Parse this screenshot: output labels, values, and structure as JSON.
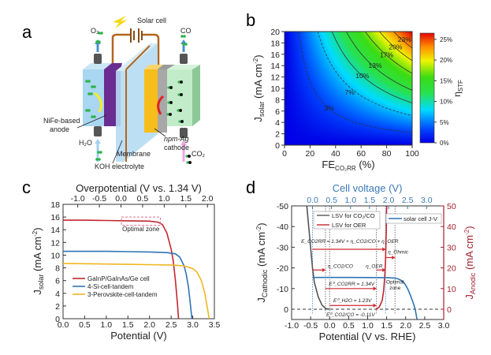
{
  "panel_labels": [
    "a",
    "b",
    "c",
    "d"
  ],
  "diagram": {
    "solar_cell": "Solar cell",
    "o2": "O₂",
    "co": "CO",
    "anode_1": "NiFe-based",
    "anode_2": "anode",
    "h2o": "H₂O",
    "membrane": "Membrane",
    "electrolyte": "KOH electrolyte",
    "cathode_1": "npm-Ag",
    "cathode_2": "cathode",
    "co2": "CO₂",
    "colors": {
      "anolyte": "#a9d6f0",
      "anode": "#6a2c91",
      "membrane": "#b5dcf3",
      "cathode": "#f7bd1a",
      "catholyte": "#c2ecc9",
      "wire": "#b5651d"
    }
  },
  "chart_data": [
    {
      "panel": "b",
      "type": "heatmap",
      "xlabel": {
        "main": "FE",
        "sub": "CO₂RR",
        "unit": " (%)"
      },
      "ylabel": {
        "main": "J",
        "sub": "solar",
        "unit": " (mA cm",
        "sup": "-2",
        "close": ")"
      },
      "xlim": [
        0,
        100
      ],
      "ylim": [
        0,
        20
      ],
      "xticks": [
        "0",
        "20",
        "40",
        "60",
        "80",
        "100"
      ],
      "yticks": [
        "0",
        "2",
        "4",
        "6",
        "8",
        "10",
        "12",
        "14",
        "16",
        "18",
        "20"
      ],
      "z_formula": "eta_STF proportional to FE x J_solar",
      "z_max_percent": 26.9,
      "colorbar": {
        "label_main": "η",
        "label_sub": "STF",
        "range": [
          0,
          26.5
        ],
        "ticks": [
          "0%",
          "5%",
          "10%",
          "15%",
          "20%",
          "25%"
        ],
        "colormap": "jet"
      },
      "contours": [
        {
          "level": 3,
          "label": "3%",
          "label_at": [
            35,
            6.5
          ],
          "dashed": true
        },
        {
          "level": 7,
          "label": "7%",
          "label_at": [
            51,
            9.3
          ],
          "dashed": true
        },
        {
          "level": 10,
          "label": "10%",
          "label_at": [
            61,
            12.2
          ],
          "dashed": false
        },
        {
          "level": 13,
          "label": "13%",
          "label_at": [
            71,
            14.0
          ],
          "dashed": false
        },
        {
          "level": 17,
          "label": "17%",
          "label_at": [
            80,
            15.9
          ],
          "dashed": false
        },
        {
          "level": 20,
          "label": "20%",
          "label_at": [
            87,
            17.3
          ],
          "dashed": false
        },
        {
          "level": 23,
          "label": "23%",
          "label_at": [
            94,
            18.6
          ],
          "dashed": false
        }
      ]
    },
    {
      "panel": "c",
      "type": "line",
      "title_top": "Overpotential (V vs. 1.34 V)",
      "xlabel": "Potential (V)",
      "ylabel": {
        "main": "J",
        "sub": "solar",
        "unit": " (mA cm",
        "sup": "-2",
        "close": ")"
      },
      "xlim": [
        0,
        3.5
      ],
      "ylim": [
        0,
        18
      ],
      "xticks": [
        "0.0",
        "0.5",
        "1.0",
        "1.5",
        "2.0",
        "2.5",
        "3.0",
        "3.5"
      ],
      "xticks_top": [
        "-1.0",
        "-0.5",
        "0.0",
        "0.5",
        "1.0",
        "1.5",
        "2.0"
      ],
      "yticks": [
        "0",
        "2",
        "4",
        "6",
        "8",
        "10",
        "12",
        "14",
        "16",
        "18"
      ],
      "annotation": {
        "text": "Optimal zone",
        "box_x": [
          1.35,
          2.25
        ],
        "box_y": [
          14.7,
          16.0
        ]
      },
      "series": [
        {
          "name": "GaInP/GaInAs/Ge cell",
          "color": "#c3262e",
          "x": [
            0,
            0.5,
            1.0,
            1.5,
            2.0,
            2.2,
            2.3,
            2.4,
            2.5,
            2.55,
            2.6,
            2.65,
            2.67
          ],
          "y": [
            15.5,
            15.5,
            15.45,
            15.4,
            15.35,
            15.2,
            14.8,
            13.5,
            11.0,
            9.0,
            6.0,
            2.0,
            0
          ]
        },
        {
          "name": "4-Si-cell-tandem",
          "color": "#2f74b5",
          "x": [
            0,
            0.5,
            1.0,
            1.5,
            2.0,
            2.4,
            2.6,
            2.7,
            2.8,
            2.85,
            2.9,
            2.95,
            2.98
          ],
          "y": [
            10.6,
            10.6,
            10.6,
            10.55,
            10.5,
            10.4,
            10.2,
            9.7,
            8.3,
            7.0,
            5.0,
            2.0,
            0
          ]
        },
        {
          "name": "3-Perovskite-cell-tandem",
          "color": "#f0b622",
          "x": [
            0,
            0.5,
            1.0,
            1.5,
            2.0,
            2.5,
            2.8,
            3.0,
            3.1,
            3.2,
            3.28,
            3.33,
            3.38
          ],
          "y": [
            8.7,
            8.65,
            8.6,
            8.55,
            8.5,
            8.45,
            8.3,
            7.9,
            7.3,
            6.0,
            4.0,
            2.0,
            0
          ]
        }
      ]
    },
    {
      "panel": "d",
      "type": "line",
      "title_top": "Cell voltage (V)",
      "xlabel": "Potential (V vs. RHE)",
      "ylabel_left": {
        "main": "J",
        "sub": "Cathodic",
        "unit": " (mA cm",
        "sup": "-2",
        "close": ")"
      },
      "ylabel_right": {
        "main": "J",
        "sub": "Anodic",
        "unit": " (mA cm",
        "sup": "-2",
        "close": ")"
      },
      "xlim": [
        -1.0,
        3.0
      ],
      "ylim_left": [
        -5,
        -50
      ],
      "ylim_right": [
        -5,
        50
      ],
      "xticks": [
        "-1.0",
        "-0.5",
        "0.0",
        "0.5",
        "1.0",
        "1.5",
        "2.0",
        "2.5",
        "3.0"
      ],
      "xticks_top": [
        "0.0",
        "0.5",
        "1.0",
        "1.5",
        "2.0",
        "2.5",
        "3.0"
      ],
      "yticks_left": [
        "-50",
        "-40",
        "-30",
        "-20",
        "-10",
        "0"
      ],
      "yticks_right": [
        "50",
        "40",
        "30",
        "20",
        "10",
        "0"
      ],
      "colors": {
        "top_axis": "#3b79b6",
        "right_axis": "#a3202f"
      },
      "series": [
        {
          "name": "LSV for CO₂/CO",
          "color": "#555555",
          "x": [
            -0.6,
            -0.55,
            -0.5,
            -0.45,
            -0.4,
            -0.3,
            -0.2,
            -0.1,
            0.0
          ],
          "y": [
            -50,
            -40,
            -30,
            -20,
            -13,
            -6,
            -2,
            -0.3,
            0
          ]
        },
        {
          "name": "LSV for OER",
          "color": "#c3262e",
          "x": [
            1.22,
            1.3,
            1.38,
            1.42,
            1.45,
            1.47,
            1.49,
            1.5
          ],
          "y": [
            0,
            -1,
            -4,
            -9,
            -16,
            -24,
            -38,
            -50
          ]
        },
        {
          "name": "solar cell J-V",
          "color": "#2f74b5",
          "x": [
            -0.45,
            0.5,
            1.5,
            1.7,
            1.8,
            1.9,
            1.97,
            2.05,
            2.12,
            2.2,
            2.25,
            2.3
          ],
          "y": [
            -15.4,
            -15.4,
            -15.3,
            -15.1,
            -14.7,
            -13.8,
            -12.5,
            -10,
            -7,
            -3,
            0,
            5
          ]
        }
      ],
      "annotations": {
        "e_cell": "E_CO2RR = 1.34V + η_CO2/CO + η_OER",
        "eta_ohmic": "η_Ohmic",
        "eta_co2co": "η_CO2/CO",
        "eta_oer": "η_OER",
        "optimal_1": "Optimal",
        "optimal_2": "zone",
        "e0_co2rr": "E⁰_CO2RR = 1.34V",
        "e0_h2o": "E⁰_H2O = 1.23V",
        "e0_co2co": "E⁰_CO2/CO = -0.11V"
      }
    }
  ]
}
